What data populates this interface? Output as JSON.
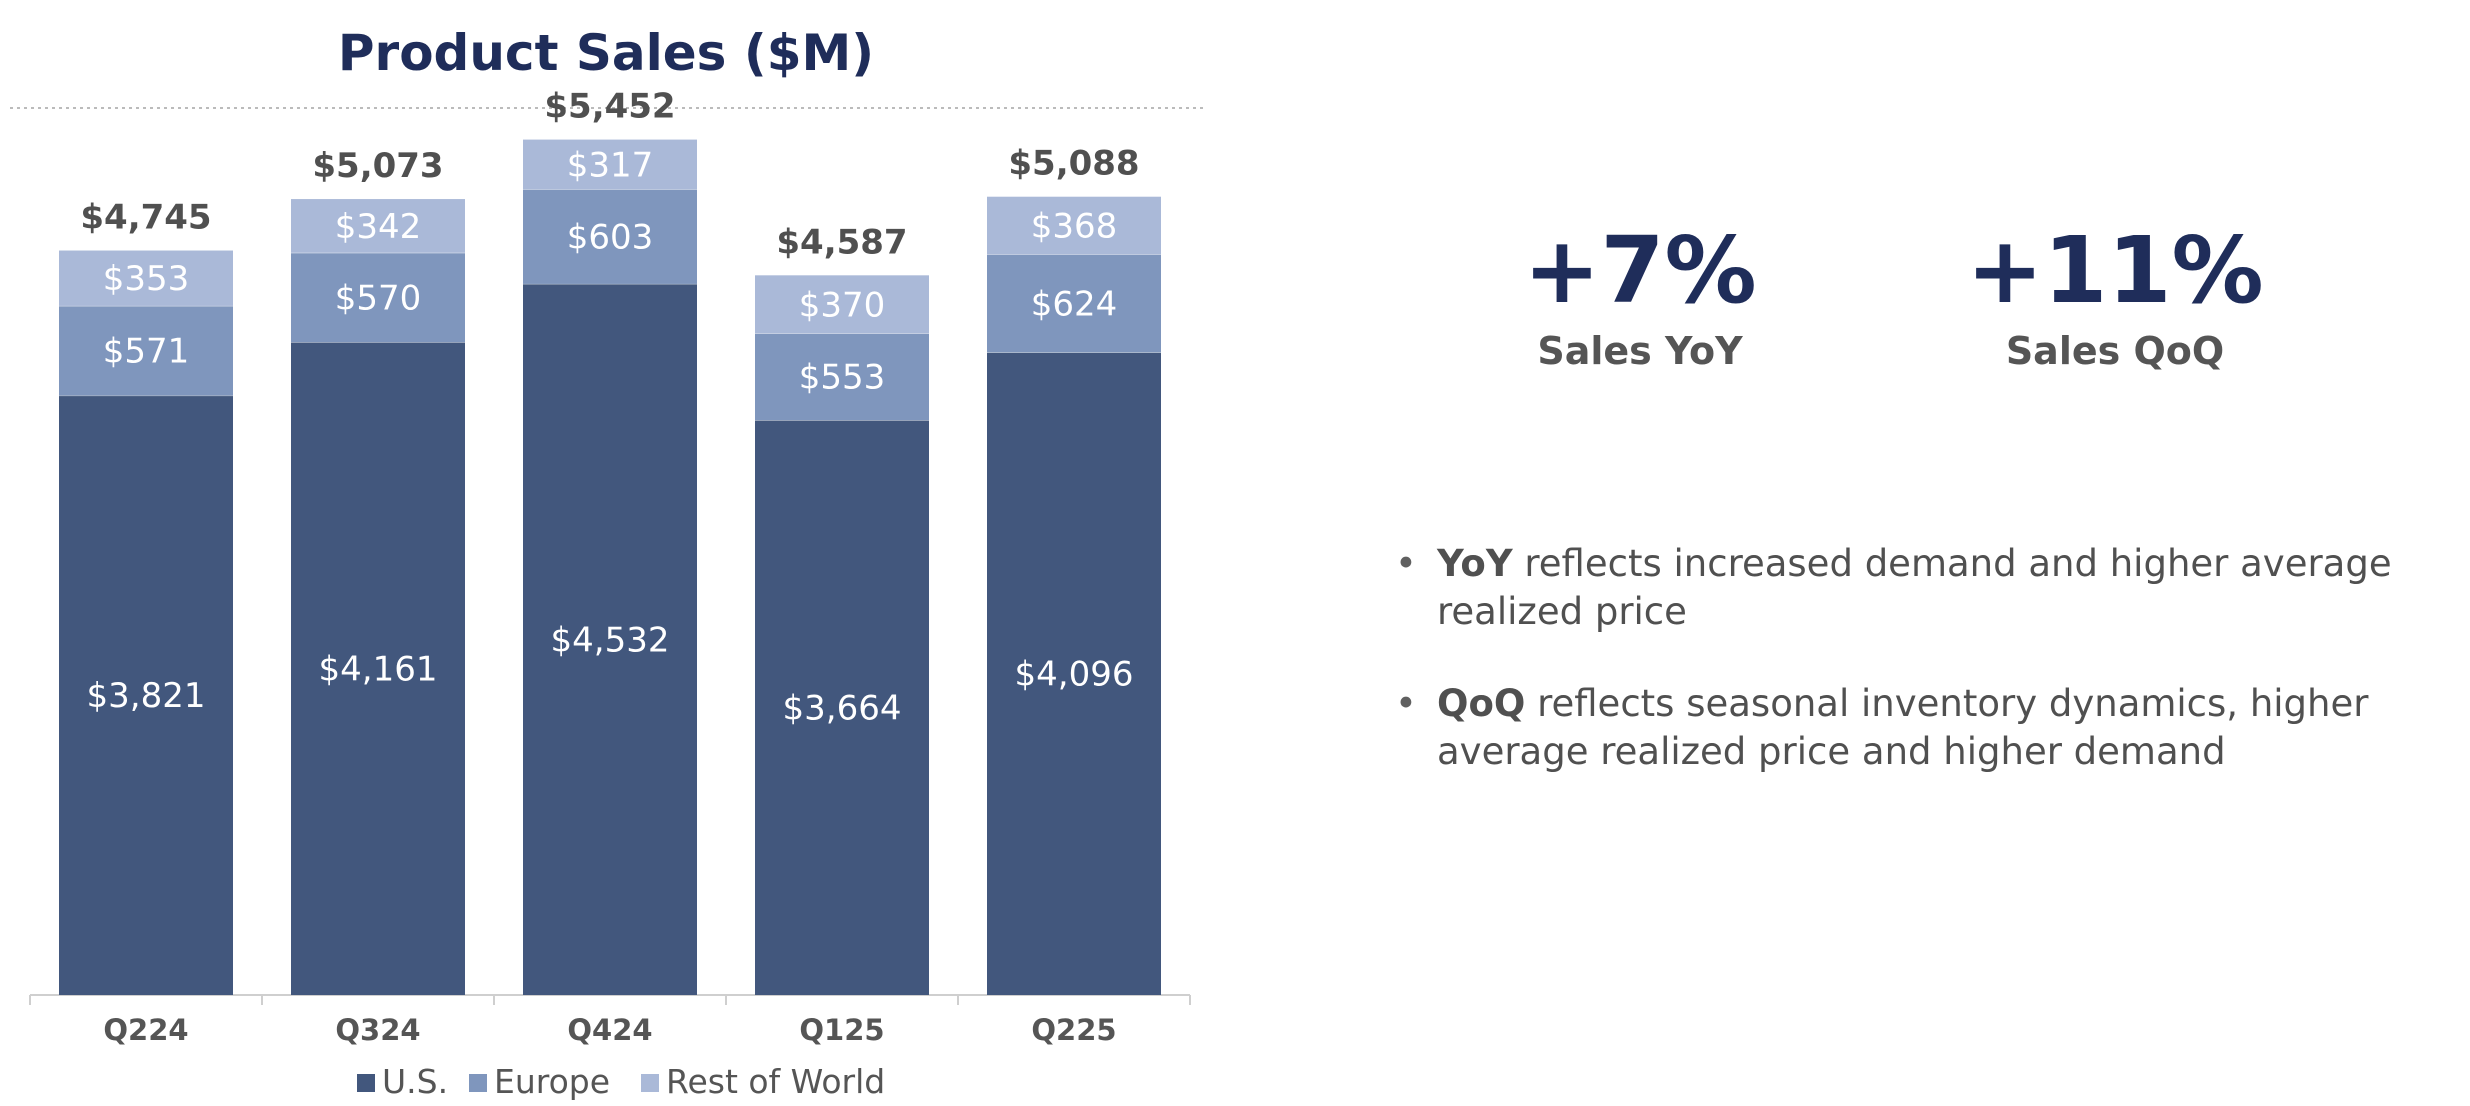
{
  "chart_data": {
    "type": "bar",
    "stacked": true,
    "title": "Product Sales ($M)",
    "categories": [
      "Q224",
      "Q324",
      "Q424",
      "Q125",
      "Q225"
    ],
    "series": [
      {
        "name": "U.S.",
        "values": [
          3821,
          4161,
          4532,
          3664,
          4096
        ],
        "labels": [
          "$3,821",
          "$4,161",
          "$4,532",
          "$3,664",
          "$4,096"
        ],
        "color": "#42577d"
      },
      {
        "name": "Europe",
        "values": [
          571,
          570,
          603,
          553,
          624
        ],
        "labels": [
          "$571",
          "$570",
          "$603",
          "$553",
          "$624"
        ],
        "color": "#7f96bd"
      },
      {
        "name": "Rest of World",
        "values": [
          353,
          342,
          317,
          370,
          368
        ],
        "labels": [
          "$353",
          "$342",
          "$317",
          "$370",
          "$368"
        ],
        "color": "#aab9d8"
      }
    ],
    "totals": [
      4745,
      5073,
      5452,
      4587,
      5088
    ],
    "total_labels": [
      "$4,745",
      "$5,073",
      "$5,452",
      "$4,587",
      "$5,088"
    ],
    "xlabel": "",
    "ylabel": "",
    "ylim": [
      0,
      5800
    ],
    "legend": "bottom-center",
    "grid": false
  },
  "kpis": [
    {
      "value": "+7%",
      "label": "Sales YoY"
    },
    {
      "value": "+11%",
      "label": "Sales QoQ"
    }
  ],
  "bullets": [
    {
      "bold": "YoY",
      "text": " reflects increased demand and higher average realized price"
    },
    {
      "bold": "QoQ",
      "text": " reflects seasonal inventory dynamics, higher average realized price and higher demand"
    }
  ]
}
